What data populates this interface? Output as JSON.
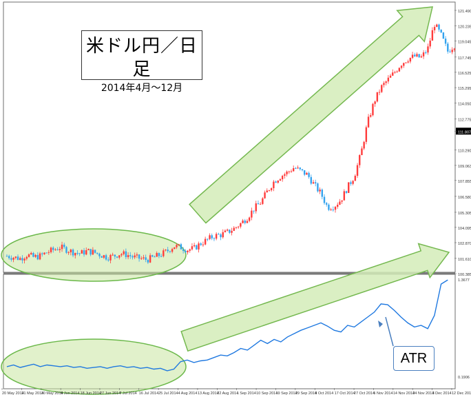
{
  "annotations": {
    "title": "米ドル円／日足",
    "subtitle": "2014年4月～12月",
    "atr_label": "ATR"
  },
  "colors": {
    "bull": "#ff3b3b",
    "bear": "#33a3ee",
    "atr_line": "#1e78e0",
    "ellipse_fill": "#c8e6a0",
    "ellipse_stroke": "#6bb84a",
    "arrow_fill": "#d4ecb8",
    "arrow_stroke": "#74b84f",
    "current_price_bg": "#000000"
  },
  "chart_data": [
    {
      "type": "candlestick",
      "series_up_color": "red",
      "series_down_color": "blue",
      "y_ticks": [
        "121.490",
        "120.235",
        "119.045",
        "117.745",
        "116.525",
        "115.295",
        "114.050",
        "112.775",
        "111.807",
        "110.290",
        "109.063",
        "107.855",
        "106.580",
        "105.305",
        "104.095",
        "102.870",
        "101.610",
        "100.385"
      ],
      "current_price": "111.807",
      "ylim": [
        100.385,
        121.49
      ],
      "x_ticks": [
        "20 May 2014",
        "21 May 2014",
        "30 May 2014",
        "9 Jun 2014",
        "18 Jun 2014",
        "27 Jun 2014",
        "7 Jul 2014",
        "16 Jul 2014",
        "25 Jul 2014",
        "4 Aug 2014",
        "13 Aug 2014",
        "22 Aug 2014",
        "1 Sep 2014",
        "10 Sep 2014",
        "19 Sep 2014",
        "29 Sep 2014",
        "8 Oct 2014",
        "17 Oct 2014",
        "27 Oct 2014",
        "5 Nov 2014",
        "14 Nov 2014",
        "24 Nov 2014",
        "3 Dec 2014",
        "12 Dec 2014"
      ],
      "close_path": [
        [
          0,
          101.8
        ],
        [
          10,
          101.7
        ],
        [
          20,
          101.6
        ],
        [
          30,
          101.9
        ],
        [
          40,
          101.7
        ],
        [
          50,
          101.8
        ],
        [
          60,
          102.1
        ],
        [
          70,
          102.3
        ],
        [
          80,
          102.5
        ],
        [
          90,
          102.3
        ],
        [
          100,
          102.1
        ],
        [
          110,
          102.0
        ],
        [
          120,
          102.2
        ],
        [
          130,
          102.1
        ],
        [
          140,
          101.9
        ],
        [
          150,
          101.7
        ],
        [
          160,
          101.8
        ],
        [
          170,
          102.0
        ],
        [
          180,
          101.9
        ],
        [
          190,
          101.7
        ],
        [
          200,
          101.6
        ],
        [
          210,
          101.5
        ],
        [
          220,
          101.7
        ],
        [
          230,
          101.9
        ],
        [
          240,
          102.2
        ],
        [
          250,
          102.6
        ],
        [
          260,
          102.5
        ],
        [
          270,
          102.3
        ],
        [
          280,
          102.4
        ],
        [
          290,
          102.8
        ],
        [
          300,
          103.1
        ],
        [
          310,
          103.4
        ],
        [
          320,
          103.5
        ],
        [
          330,
          103.7
        ],
        [
          340,
          104.0
        ],
        [
          350,
          104.4
        ],
        [
          360,
          104.9
        ],
        [
          370,
          105.6
        ],
        [
          380,
          106.1
        ],
        [
          390,
          107.0
        ],
        [
          400,
          107.8
        ],
        [
          410,
          108.2
        ],
        [
          420,
          108.5
        ],
        [
          430,
          108.9
        ],
        [
          440,
          108.6
        ],
        [
          450,
          108.3
        ],
        [
          460,
          107.5
        ],
        [
          470,
          106.8
        ],
        [
          480,
          105.7
        ],
        [
          490,
          105.8
        ],
        [
          500,
          106.3
        ],
        [
          510,
          107.3
        ],
        [
          520,
          108.2
        ],
        [
          530,
          110.0
        ],
        [
          540,
          112.5
        ],
        [
          550,
          114.2
        ],
        [
          560,
          115.3
        ],
        [
          570,
          115.9
        ],
        [
          580,
          116.5
        ],
        [
          590,
          117.2
        ],
        [
          600,
          117.6
        ],
        [
          610,
          117.8
        ],
        [
          620,
          117.7
        ],
        [
          630,
          118.4
        ],
        [
          640,
          120.4
        ],
        [
          650,
          119.5
        ],
        [
          660,
          118.2
        ],
        [
          670,
          118.7
        ]
      ]
    },
    {
      "type": "line",
      "indicator": "ATR",
      "y_ticks": [
        "1.3677",
        "0.1906"
      ],
      "ylim": [
        0.1906,
        1.3677
      ],
      "x": [
        0,
        10,
        20,
        30,
        40,
        50,
        60,
        70,
        80,
        90,
        100,
        110,
        120,
        130,
        140,
        150,
        160,
        170,
        180,
        190,
        200,
        210,
        220,
        230,
        240,
        250,
        260,
        270,
        280,
        290,
        300,
        310,
        320,
        330,
        340,
        350,
        360,
        370,
        380,
        390,
        400,
        410,
        420,
        430,
        440,
        450,
        460,
        470,
        480,
        490,
        500,
        510,
        520,
        530,
        540,
        550,
        560,
        570,
        580,
        590,
        600,
        610,
        620,
        630,
        640,
        650,
        660
      ],
      "values": [
        0.3,
        0.32,
        0.29,
        0.31,
        0.33,
        0.3,
        0.32,
        0.31,
        0.3,
        0.31,
        0.29,
        0.3,
        0.28,
        0.29,
        0.3,
        0.28,
        0.3,
        0.31,
        0.29,
        0.3,
        0.28,
        0.29,
        0.27,
        0.28,
        0.25,
        0.27,
        0.36,
        0.38,
        0.35,
        0.37,
        0.38,
        0.41,
        0.44,
        0.43,
        0.47,
        0.52,
        0.5,
        0.56,
        0.62,
        0.58,
        0.63,
        0.6,
        0.66,
        0.7,
        0.74,
        0.77,
        0.8,
        0.83,
        0.79,
        0.74,
        0.72,
        0.8,
        0.78,
        0.84,
        0.9,
        0.96,
        1.06,
        1.05,
        0.98,
        0.9,
        0.83,
        0.78,
        0.8,
        0.76,
        0.92,
        1.3,
        1.35
      ]
    }
  ]
}
